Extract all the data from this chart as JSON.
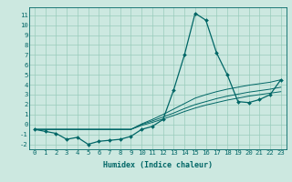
{
  "xlabel": "Humidex (Indice chaleur)",
  "bg_color": "#cce8e0",
  "grid_color": "#99ccbb",
  "line_color": "#006666",
  "xlim": [
    -0.5,
    23.5
  ],
  "ylim": [
    -2.5,
    11.8
  ],
  "x": [
    0,
    1,
    2,
    3,
    4,
    5,
    6,
    7,
    8,
    9,
    10,
    11,
    12,
    13,
    14,
    15,
    16,
    17,
    18,
    19,
    20,
    21,
    22,
    23
  ],
  "y_main": [
    -0.5,
    -0.7,
    -0.9,
    -1.5,
    -1.3,
    -2.0,
    -1.7,
    -1.6,
    -1.5,
    -1.2,
    -0.5,
    -0.2,
    0.5,
    3.5,
    7.0,
    11.2,
    10.5,
    7.2,
    5.0,
    2.3,
    2.2,
    2.5,
    3.0,
    4.5
  ],
  "y_line2": [
    -0.5,
    -0.5,
    -0.5,
    -0.5,
    -0.5,
    -0.5,
    -0.5,
    -0.5,
    -0.5,
    -0.5,
    -0.1,
    0.2,
    0.55,
    0.9,
    1.3,
    1.65,
    1.95,
    2.2,
    2.45,
    2.65,
    2.85,
    3.0,
    3.15,
    3.3
  ],
  "y_line3": [
    -0.5,
    -0.5,
    -0.5,
    -0.5,
    -0.5,
    -0.5,
    -0.5,
    -0.5,
    -0.5,
    -0.5,
    0.0,
    0.35,
    0.75,
    1.15,
    1.6,
    2.0,
    2.3,
    2.6,
    2.85,
    3.05,
    3.25,
    3.4,
    3.55,
    3.75
  ],
  "y_line4": [
    -0.5,
    -0.5,
    -0.5,
    -0.5,
    -0.5,
    -0.5,
    -0.5,
    -0.5,
    -0.5,
    -0.5,
    0.05,
    0.5,
    1.0,
    1.55,
    2.1,
    2.65,
    3.0,
    3.3,
    3.55,
    3.75,
    3.95,
    4.1,
    4.25,
    4.5
  ],
  "xticks": [
    0,
    1,
    2,
    3,
    4,
    5,
    6,
    7,
    8,
    9,
    10,
    11,
    12,
    13,
    14,
    15,
    16,
    17,
    18,
    19,
    20,
    21,
    22,
    23
  ],
  "yticks": [
    -2,
    -1,
    0,
    1,
    2,
    3,
    4,
    5,
    6,
    7,
    8,
    9,
    10,
    11
  ],
  "tick_fontsize": 5.2,
  "xlabel_fontsize": 6.0
}
